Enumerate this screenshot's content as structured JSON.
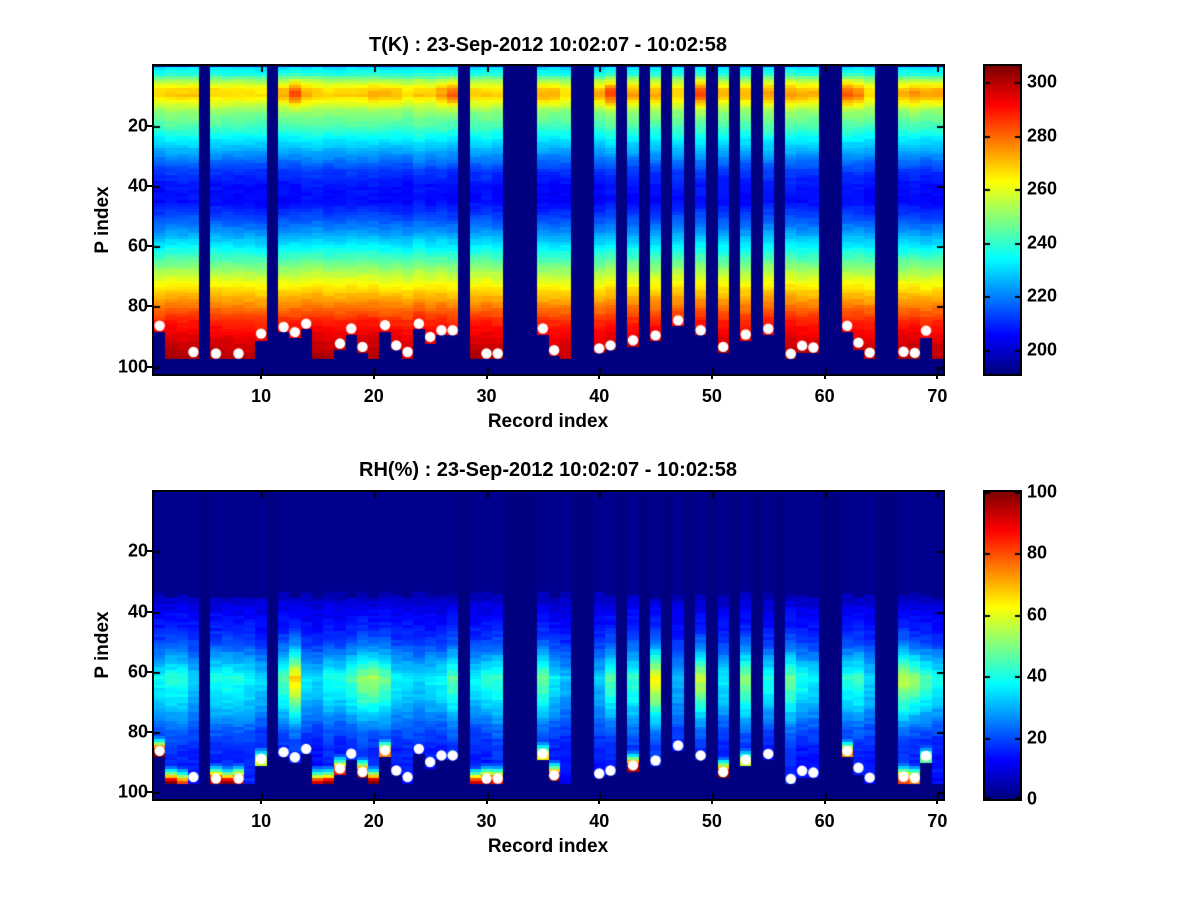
{
  "figure": {
    "background": "#ffffff",
    "frame_color": "#000000",
    "missing_data_color": "#00008f",
    "surface_marker_color": "#ffffff",
    "colormap": "jet"
  },
  "chart_data": [
    {
      "type": "heatmap",
      "title": "T(K) : 23-Sep-2012 10:02:07 - 10:02:58",
      "xlabel": "Record index",
      "ylabel": "P index",
      "x_ticks": [
        10,
        20,
        30,
        40,
        50,
        60,
        70
      ],
      "y_ticks": [
        20,
        40,
        60,
        80,
        100
      ],
      "n_records": 70,
      "n_levels": 102,
      "y_axis_reversed": true,
      "grid": false,
      "legend": "colorbar-right",
      "colorbar": {
        "min": 191,
        "max": 306,
        "ticks": [
          200,
          220,
          240,
          260,
          280,
          300
        ]
      },
      "missing_records": [
        5,
        11,
        28,
        32,
        33,
        34,
        38,
        39,
        42,
        44,
        46,
        48,
        50,
        52,
        54,
        56,
        60,
        61,
        65,
        66
      ],
      "profile_p": [
        1,
        3,
        5,
        8,
        10,
        12,
        15,
        20,
        25,
        30,
        35,
        40,
        45,
        50,
        55,
        60,
        65,
        70,
        75,
        80,
        85,
        90,
        95,
        100
      ],
      "profile_value": [
        232,
        238,
        252,
        266,
        268,
        261,
        251,
        243,
        232,
        222,
        212,
        207,
        206,
        213,
        222,
        233,
        245,
        257,
        268,
        278,
        288,
        294,
        299,
        302
      ],
      "warm_band": {
        "center_p": 9.5,
        "width_p": 4.5,
        "anomalies_by_record": {
          "12": 5,
          "13": 16,
          "14": 4,
          "20": 3,
          "21": 5,
          "22": 4,
          "26": 6,
          "27": 15,
          "35": 6,
          "36": 6,
          "40": 6,
          "41": 15,
          "43": 6,
          "45": 5,
          "49": 15,
          "51": 3,
          "53": 4,
          "55": 5,
          "57": 6,
          "58": 5,
          "59": 4,
          "62": 14,
          "63": 9,
          "67": 4,
          "68": 8,
          "69": 7,
          "70": 6
        }
      },
      "surface_dots": [
        [
          1,
          86.4
        ],
        [
          4,
          95.1
        ],
        [
          6,
          95.6
        ],
        [
          8,
          95.6
        ],
        [
          10,
          89.0
        ],
        [
          12,
          86.8
        ],
        [
          13,
          88.5
        ],
        [
          14,
          85.7
        ],
        [
          17,
          92.3
        ],
        [
          18,
          87.3
        ],
        [
          19,
          93.4
        ],
        [
          21,
          86.2
        ],
        [
          22,
          92.9
        ],
        [
          23,
          95.1
        ],
        [
          24,
          85.7
        ],
        [
          25,
          90.1
        ],
        [
          26,
          87.9
        ],
        [
          27,
          87.9
        ],
        [
          30,
          95.6
        ],
        [
          31,
          95.6
        ],
        [
          35,
          87.3
        ],
        [
          36,
          94.5
        ],
        [
          40,
          93.9
        ],
        [
          41,
          92.9
        ],
        [
          43,
          91.2
        ],
        [
          45,
          89.6
        ],
        [
          47,
          84.6
        ],
        [
          49,
          87.9
        ],
        [
          51,
          93.4
        ],
        [
          53,
          89.3
        ],
        [
          55,
          87.4
        ],
        [
          57,
          95.7
        ],
        [
          58,
          93.0
        ],
        [
          59,
          93.6
        ],
        [
          62,
          86.4
        ],
        [
          63,
          92.0
        ],
        [
          64,
          95.3
        ],
        [
          67,
          95.0
        ],
        [
          68,
          95.4
        ],
        [
          69,
          88.0
        ]
      ],
      "default_surface_p": 95
    },
    {
      "type": "heatmap",
      "title": "RH(%) : 23-Sep-2012 10:02:07 - 10:02:58",
      "xlabel": "Record index",
      "ylabel": "P index",
      "x_ticks": [
        10,
        20,
        30,
        40,
        50,
        60,
        70
      ],
      "y_ticks": [
        20,
        40,
        60,
        80,
        100
      ],
      "n_records": 70,
      "n_levels": 102,
      "y_axis_reversed": true,
      "grid": false,
      "legend": "colorbar-right",
      "colorbar": {
        "min": 0,
        "max": 100,
        "ticks": [
          0,
          20,
          40,
          60,
          80,
          100
        ]
      },
      "missing_records": [
        5,
        11,
        28,
        32,
        33,
        34,
        38,
        39,
        42,
        44,
        46,
        48,
        50,
        52,
        54,
        56,
        60,
        61,
        65,
        66
      ],
      "data_top_p": 33,
      "profile_p": [
        33,
        35,
        40,
        45,
        50,
        55,
        60,
        62,
        65,
        70,
        75,
        80,
        85,
        90,
        95,
        100
      ],
      "profile_value": [
        4,
        6,
        11,
        14,
        18,
        26,
        34,
        38,
        36,
        32,
        26,
        20,
        16,
        15,
        15,
        12
      ],
      "mid_factor_by_record": {
        "4": 0.85,
        "9": 0.9,
        "12": 1.2,
        "13": 1.6,
        "17": 1.15,
        "18": 1.15,
        "19": 1.2,
        "20": 1.4,
        "21": 1.15,
        "23": 0.9,
        "24": 0.9,
        "26": 1.1,
        "27": 1.1,
        "30": 1.1,
        "35": 1.2,
        "37": 0.9,
        "40": 0.85,
        "41": 1.15,
        "45": 1.45,
        "47": 0.85,
        "49": 1.5,
        "53": 1.25,
        "55": 1.2,
        "57": 1.15,
        "58": 1.15,
        "62": 1.15,
        "63": 1.1,
        "64": 0.9,
        "67": 1.35,
        "68": 1.4,
        "69": 1.25,
        "70": 1.1
      },
      "surface_rh_by_record": {
        "1": 100,
        "2": 95,
        "3": 75,
        "6": 90,
        "7": 95,
        "8": 88,
        "10": 55,
        "15": 85,
        "16": 92,
        "17": 80,
        "19": 95,
        "20": 100,
        "21": 70,
        "29": 85,
        "30": 88,
        "31": 80,
        "35": 60,
        "36": 95,
        "43": 90,
        "51": 95,
        "53": 55,
        "62": 70,
        "67": 75,
        "68": 70,
        "69": 45
      },
      "surface_dots": [
        [
          1,
          86.4
        ],
        [
          4,
          95.1
        ],
        [
          6,
          95.6
        ],
        [
          8,
          95.6
        ],
        [
          10,
          89.0
        ],
        [
          12,
          86.8
        ],
        [
          13,
          88.5
        ],
        [
          14,
          85.7
        ],
        [
          17,
          92.3
        ],
        [
          18,
          87.3
        ],
        [
          19,
          93.4
        ],
        [
          21,
          86.2
        ],
        [
          22,
          92.9
        ],
        [
          23,
          95.1
        ],
        [
          24,
          85.7
        ],
        [
          25,
          90.1
        ],
        [
          26,
          87.9
        ],
        [
          27,
          87.9
        ],
        [
          30,
          95.6
        ],
        [
          31,
          95.6
        ],
        [
          35,
          87.3
        ],
        [
          36,
          94.5
        ],
        [
          40,
          93.9
        ],
        [
          41,
          92.9
        ],
        [
          43,
          91.2
        ],
        [
          45,
          89.6
        ],
        [
          47,
          84.6
        ],
        [
          49,
          87.9
        ],
        [
          51,
          93.4
        ],
        [
          53,
          89.3
        ],
        [
          55,
          87.4
        ],
        [
          57,
          95.7
        ],
        [
          58,
          93.0
        ],
        [
          59,
          93.6
        ],
        [
          62,
          86.4
        ],
        [
          63,
          92.0
        ],
        [
          64,
          95.3
        ],
        [
          67,
          95.0
        ],
        [
          68,
          95.4
        ],
        [
          69,
          88.0
        ]
      ],
      "default_surface_p": 95
    }
  ]
}
